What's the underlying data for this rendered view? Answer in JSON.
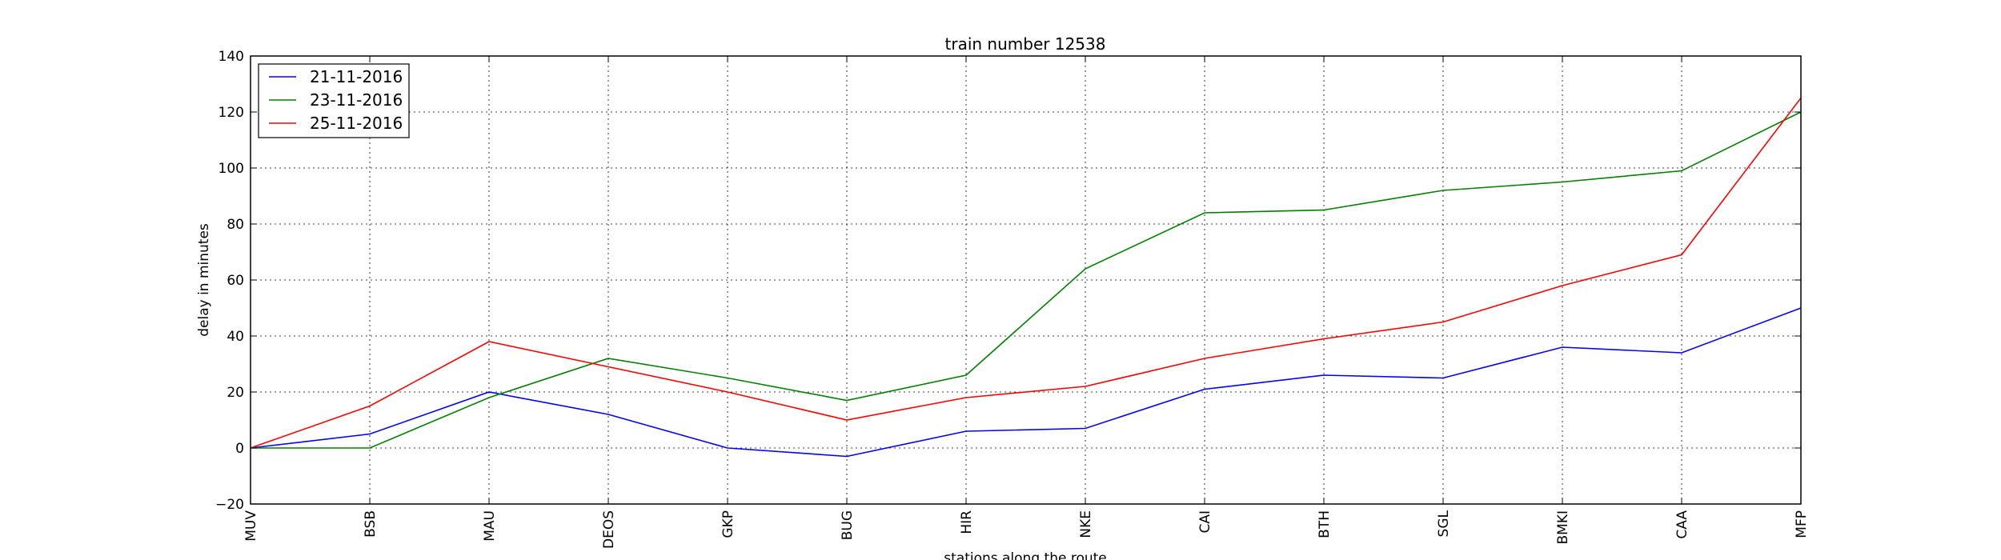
{
  "chart_data": {
    "type": "line",
    "title": "train number 12538",
    "xlabel": "stations along the route",
    "ylabel": "delay in minutes",
    "categories": [
      "MUV",
      "BSB",
      "MAU",
      "DEOS",
      "GKP",
      "BUG",
      "HIR",
      "NKE",
      "CAI",
      "BTH",
      "SGL",
      "BMKI",
      "CAA",
      "MFP"
    ],
    "ylim": [
      -20,
      140
    ],
    "yticks": [
      -20,
      0,
      20,
      40,
      60,
      80,
      100,
      120,
      140
    ],
    "grid": true,
    "legend_position": "top-left",
    "series": [
      {
        "name": "21-11-2016",
        "color": "#0000ff",
        "values": [
          0,
          5,
          20,
          12,
          0,
          -3,
          6,
          7,
          21,
          26,
          25,
          36,
          34,
          50
        ]
      },
      {
        "name": "23-11-2016",
        "color": "#008000",
        "values": [
          0,
          0,
          18,
          32,
          25,
          17,
          26,
          64,
          84,
          85,
          92,
          95,
          99,
          120
        ]
      },
      {
        "name": "25-11-2016",
        "color": "#ff0000",
        "values": [
          0,
          15,
          38,
          29,
          20,
          10,
          18,
          22,
          32,
          39,
          45,
          58,
          69,
          125
        ]
      }
    ]
  }
}
